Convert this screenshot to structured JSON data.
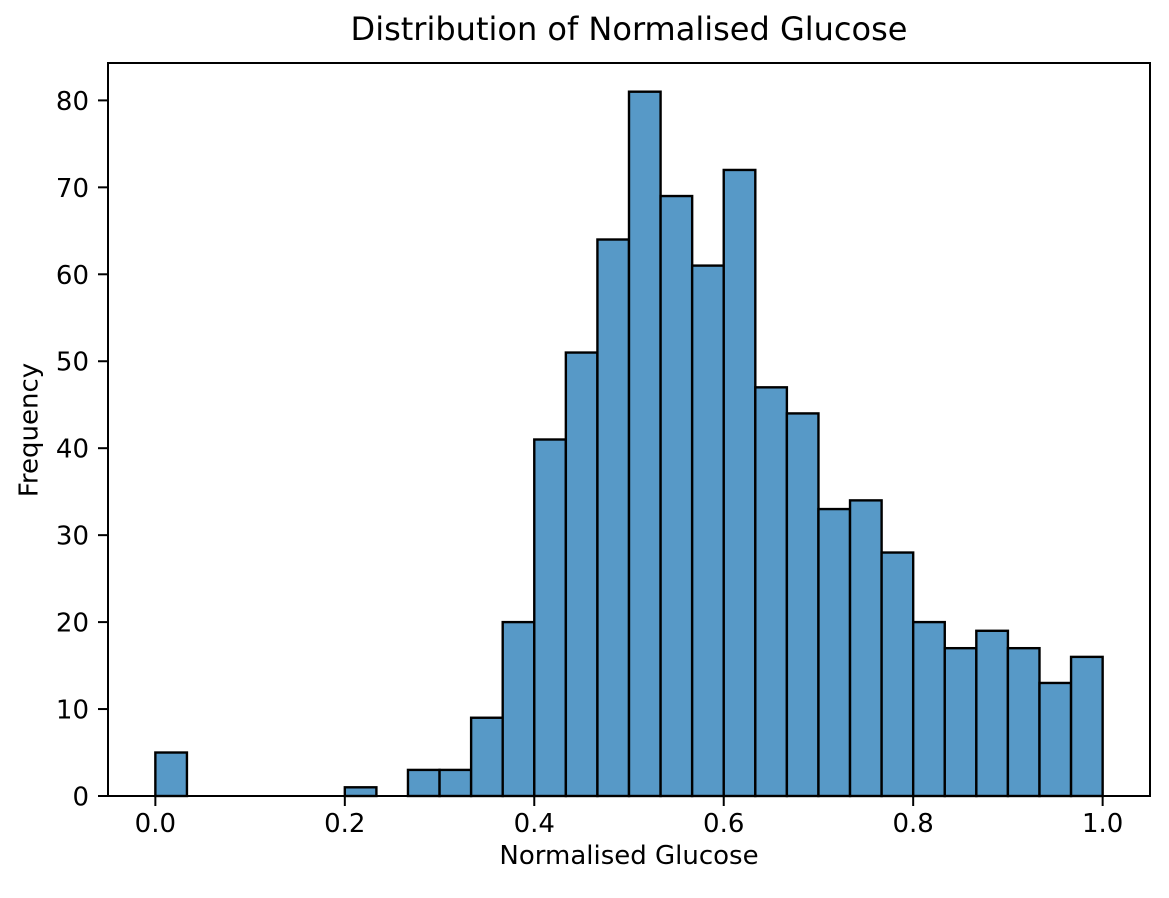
{
  "page": {
    "background": "#ffffff"
  },
  "chart_data": {
    "type": "bar",
    "subtype": "histogram",
    "title": "Distribution of Normalised Glucose",
    "xlabel": "Normalised Glucose",
    "ylabel": "Frequency",
    "bins": 30,
    "bin_range": [
      0.0,
      1.0
    ],
    "bin_width": 0.033333,
    "values": [
      5,
      0,
      0,
      0,
      0,
      0,
      1,
      0,
      3,
      3,
      9,
      20,
      41,
      51,
      64,
      81,
      69,
      61,
      72,
      47,
      44,
      33,
      34,
      28,
      20,
      17,
      19,
      17,
      13,
      16
    ],
    "total_count": 768,
    "xticks": {
      "values": [
        0.0,
        0.2,
        0.4,
        0.6,
        0.8,
        1.0
      ],
      "labels": [
        "0.0",
        "0.2",
        "0.4",
        "0.6",
        "0.8",
        "1.0"
      ]
    },
    "yticks": {
      "values": [
        0,
        10,
        20,
        30,
        40,
        50,
        60,
        70,
        80
      ],
      "labels": [
        "0",
        "10",
        "20",
        "30",
        "40",
        "50",
        "60",
        "70",
        "80"
      ]
    },
    "xlim": [
      -0.05,
      1.05
    ],
    "ylim": [
      0,
      84.3
    ],
    "grid": false,
    "legend": false,
    "colors": {
      "bar_fill": "#5799c7",
      "bar_edge": "#000000",
      "axis": "#000000",
      "text": "#000000"
    }
  }
}
